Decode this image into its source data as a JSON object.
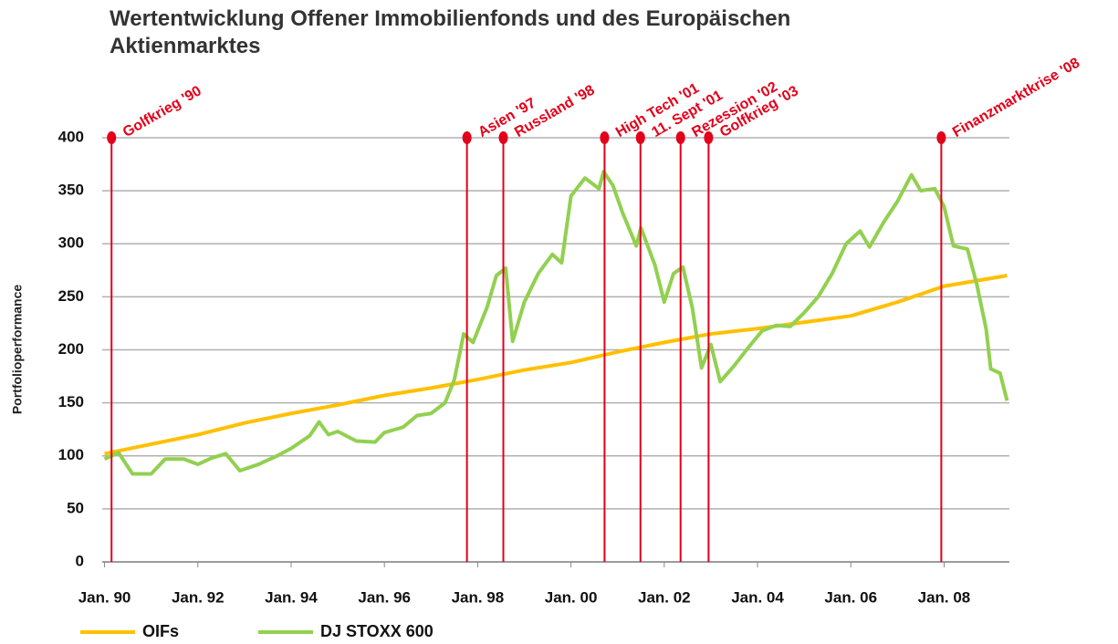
{
  "chart_data": {
    "type": "line",
    "title": "Wertentwicklung Offener Immobilienfonds und des Europäischen Aktienmarktes",
    "ylabel": "Portfolioperformance",
    "xlim": [
      1989.95,
      2009.4
    ],
    "ylim": [
      0,
      400
    ],
    "yticks": [
      0,
      50,
      100,
      150,
      200,
      250,
      300,
      350,
      400
    ],
    "xticks": [
      {
        "value": 1990,
        "label": "Jan. 90"
      },
      {
        "value": 1992,
        "label": "Jan. 92"
      },
      {
        "value": 1994,
        "label": "Jan. 94"
      },
      {
        "value": 1996,
        "label": "Jan. 96"
      },
      {
        "value": 1998,
        "label": "Jan. 98"
      },
      {
        "value": 2000,
        "label": "Jan. 00"
      },
      {
        "value": 2002,
        "label": "Jan. 02"
      },
      {
        "value": 2004,
        "label": "Jan. 04"
      },
      {
        "value": 2006,
        "label": "Jan. 06"
      },
      {
        "value": 2008,
        "label": "Jan. 08"
      }
    ],
    "grid": true,
    "series": [
      {
        "name": "OIFs",
        "color": "#ffc000",
        "x": [
          1990,
          1991,
          1992,
          1993,
          1994,
          1995,
          1996,
          1997,
          1998,
          1999,
          2000,
          2001,
          2002,
          2003,
          2004,
          2005,
          2006,
          2007,
          2008,
          2009.35
        ],
        "values": [
          102,
          111,
          120,
          131,
          140,
          148,
          157,
          164,
          172,
          181,
          188,
          198,
          207,
          215,
          220,
          226,
          232,
          245,
          260,
          270
        ]
      },
      {
        "name": "DJ STOXX 600",
        "color": "#92d050",
        "x": [
          1990,
          1990.3,
          1990.6,
          1991,
          1991.3,
          1991.7,
          1992,
          1992.3,
          1992.6,
          1992.9,
          1993.3,
          1993.7,
          1994,
          1994.4,
          1994.6,
          1994.8,
          1995,
          1995.4,
          1995.8,
          1996,
          1996.4,
          1996.7,
          1997,
          1997.3,
          1997.5,
          1997.7,
          1997.9,
          1998.2,
          1998.4,
          1998.6,
          1998.75,
          1999,
          1999.3,
          1999.6,
          1999.8,
          2000,
          2000.3,
          2000.6,
          2000.7,
          2000.9,
          2001.1,
          2001.4,
          2001.5,
          2001.8,
          2002,
          2002.2,
          2002.4,
          2002.6,
          2002.8,
          2003,
          2003.2,
          2003.5,
          2003.8,
          2004.1,
          2004.4,
          2004.7,
          2005,
          2005.3,
          2005.6,
          2005.9,
          2006.2,
          2006.4,
          2006.7,
          2007,
          2007.3,
          2007.5,
          2007.8,
          2008,
          2008.2,
          2008.5,
          2008.7,
          2008.9,
          2009,
          2009.2,
          2009.35
        ],
        "values": [
          97,
          103,
          83,
          83,
          97,
          97,
          92,
          98,
          102,
          86,
          92,
          100,
          107,
          119,
          132,
          120,
          123,
          114,
          113,
          122,
          127,
          138,
          140,
          150,
          172,
          215,
          207,
          240,
          270,
          277,
          208,
          245,
          272,
          290,
          282,
          345,
          362,
          352,
          368,
          355,
          330,
          298,
          315,
          280,
          245,
          272,
          278,
          240,
          183,
          205,
          170,
          185,
          202,
          218,
          223,
          222,
          235,
          250,
          272,
          300,
          312,
          297,
          320,
          340,
          365,
          350,
          352,
          335,
          298,
          295,
          262,
          220,
          182,
          178,
          152
        ]
      }
    ],
    "events": [
      {
        "label": "Golfkrieg '90",
        "x": 1990.15
      },
      {
        "label": "Asien '97",
        "x": 1997.77
      },
      {
        "label": "Russland '98",
        "x": 1998.55
      },
      {
        "label": "High Tech '01",
        "x": 2000.72
      },
      {
        "label": "11. Sept '01",
        "x": 2001.49
      },
      {
        "label": "Rezession '02",
        "x": 2002.35
      },
      {
        "label": "Golfkrieg '03",
        "x": 2002.95
      },
      {
        "label": "Finanzmarktkrise '08",
        "x": 2007.94
      }
    ]
  }
}
